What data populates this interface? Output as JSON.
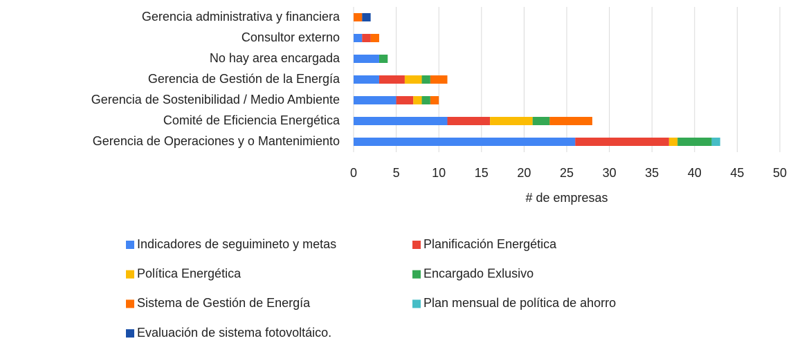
{
  "chart_data": {
    "type": "stacked_barh",
    "categories": [
      "Gerencia administrativa y financiera",
      "Consultor externo",
      "No hay area encargada",
      "Gerencia de Gestión de la Energía",
      "Gerencia de Sostenibilidad / Medio Ambiente",
      "Comité de Eficiencia Energética",
      "Gerencia de Operaciones y o Mantenimiento"
    ],
    "series": [
      {
        "name": "Indicadores de seguimineto y metas",
        "color": "#4285f4",
        "values": [
          0,
          1,
          3,
          3,
          5,
          11,
          26
        ]
      },
      {
        "name": "Planificación Energética",
        "color": "#ea4335",
        "values": [
          0,
          1,
          0,
          3,
          2,
          5,
          11
        ]
      },
      {
        "name": "Política Energética",
        "color": "#fbbc04",
        "values": [
          0,
          0,
          0,
          2,
          1,
          5,
          1
        ]
      },
      {
        "name": "Encargado Exlusivo",
        "color": "#34a853",
        "values": [
          0,
          0,
          1,
          1,
          1,
          2,
          4
        ]
      },
      {
        "name": "Sistema de Gestión de Energía",
        "color": "#ff6d01",
        "values": [
          1,
          1,
          0,
          2,
          1,
          5,
          0
        ]
      },
      {
        "name": "Plan mensual de política de ahorro",
        "color": "#46bdc6",
        "values": [
          0,
          0,
          0,
          0,
          0,
          0,
          1
        ]
      },
      {
        "name": "Evaluación de sistema fotovoltáico.",
        "color": "#1a4fa8",
        "values": [
          1,
          0,
          0,
          0,
          0,
          0,
          0
        ]
      }
    ],
    "xlabel": "# de empresas",
    "xlim": [
      0,
      50
    ],
    "xticks": [
      0,
      5,
      10,
      15,
      20,
      25,
      30,
      35,
      40,
      45,
      50
    ],
    "grid": true
  }
}
